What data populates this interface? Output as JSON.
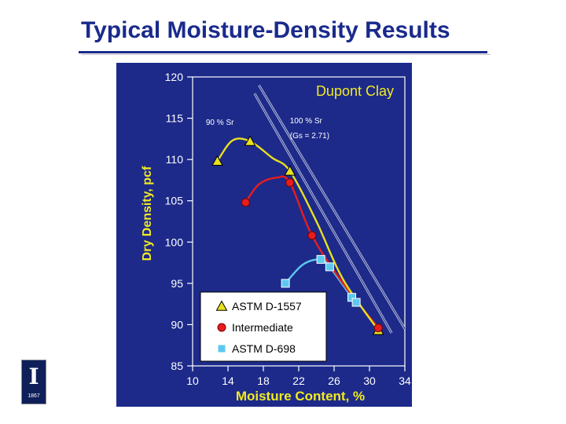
{
  "slide_title": "Typical Moisture-Density Results",
  "logo": {
    "letter": "I",
    "year": "1867"
  },
  "chart_data": {
    "type": "scatter",
    "title": "Dupont Clay",
    "xlabel": "Moisture Content, %",
    "ylabel": "Dry Density, pcf",
    "xlim": [
      10,
      34
    ],
    "ylim": [
      85,
      120
    ],
    "x_ticks": [
      10,
      14,
      18,
      22,
      26,
      30,
      34
    ],
    "y_ticks": [
      85,
      90,
      95,
      100,
      105,
      110,
      115,
      120
    ],
    "grid": false,
    "legend_position": "bottom-left",
    "annotations": [
      {
        "text": "90 % Sr",
        "x": 11.5,
        "y": 114.2
      },
      {
        "text": "100 % Sr",
        "x": 21.0,
        "y": 114.4
      },
      {
        "text": "(Gs = 2.71)",
        "x": 21.0,
        "y": 112.6
      }
    ],
    "saturation_lines": [
      {
        "name": "90 % Sr",
        "points": [
          [
            17.0,
            118.0
          ],
          [
            32.5,
            89.0
          ]
        ]
      },
      {
        "name": "100 % Sr",
        "points": [
          [
            17.5,
            119.0
          ],
          [
            34.0,
            89.5
          ]
        ]
      }
    ],
    "series": [
      {
        "name": "ASTM D-1557",
        "marker": "triangle",
        "color": "#e8e020",
        "points": [
          [
            12.8,
            109.8
          ],
          [
            16.5,
            112.2
          ],
          [
            21.0,
            108.6
          ],
          [
            31.0,
            89.3
          ]
        ],
        "curve": [
          [
            12.8,
            109.8
          ],
          [
            14.5,
            112.3
          ],
          [
            16.5,
            112.2
          ],
          [
            19.0,
            110.2
          ],
          [
            21.0,
            108.6
          ],
          [
            24.0,
            102.5
          ],
          [
            27.0,
            95.5
          ],
          [
            31.0,
            89.3
          ]
        ]
      },
      {
        "name": "Intermediate",
        "marker": "circle",
        "color": "#e81d1d",
        "points": [
          [
            16.0,
            104.8
          ],
          [
            21.0,
            107.2
          ],
          [
            23.5,
            100.8
          ],
          [
            31.0,
            89.6
          ]
        ],
        "curve": [
          [
            16.0,
            104.8
          ],
          [
            17.5,
            107.0
          ],
          [
            19.5,
            107.8
          ],
          [
            21.0,
            107.2
          ],
          [
            23.5,
            100.8
          ],
          [
            27.0,
            95.0
          ],
          [
            31.0,
            89.6
          ]
        ]
      },
      {
        "name": "ASTM D-698",
        "marker": "square",
        "color": "#5ec8f0",
        "points": [
          [
            20.5,
            95.0
          ],
          [
            24.5,
            97.9
          ],
          [
            25.5,
            97.0
          ],
          [
            28.0,
            93.3
          ],
          [
            28.5,
            92.7
          ]
        ],
        "curve": [
          [
            20.5,
            95.0
          ],
          [
            22.5,
            97.3
          ],
          [
            24.5,
            97.9
          ],
          [
            25.5,
            97.0
          ],
          [
            28.0,
            93.3
          ],
          [
            28.5,
            92.7
          ]
        ]
      }
    ]
  }
}
